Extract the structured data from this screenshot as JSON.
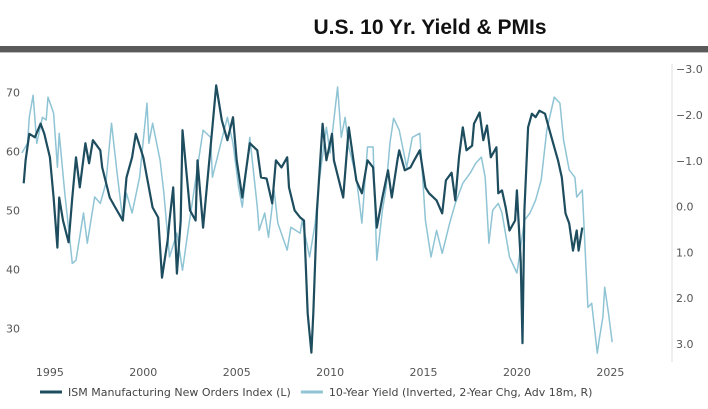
{
  "chart_data": {
    "type": "line",
    "title": "U.S. 10 Yr. Yield & PMIs",
    "xlim": [
      1993.4,
      2028.3
    ],
    "x_ticks": [
      "1995",
      "2000",
      "2005",
      "2010",
      "2015",
      "2020",
      "2025"
    ],
    "y_left": {
      "lim": [
        25.5,
        75.5
      ],
      "ticks": [
        "70",
        "60",
        "50",
        "40",
        "30"
      ]
    },
    "y_right": {
      "lim": [
        -3.2,
        3.24
      ],
      "inverted": true,
      "ticks": [
        "-3.0",
        "-2.0",
        "-1.0",
        "0.0",
        "1.0",
        "2.0",
        "3.0"
      ]
    },
    "grid": false,
    "legend_placement": "bottom",
    "series": [
      {
        "name": "ISM Manufacturing New Orders Index (L)",
        "axis": "left",
        "color": "#1d4d5e",
        "points": [
          [
            1993.6,
            54.6
          ],
          [
            1993.7,
            58.5
          ],
          [
            1993.9,
            63
          ],
          [
            1994.2,
            62.4
          ],
          [
            1994.5,
            64.7
          ],
          [
            1994.7,
            63
          ],
          [
            1995.0,
            59
          ],
          [
            1995.2,
            52.2
          ],
          [
            1995.4,
            43.7
          ],
          [
            1995.5,
            52.2
          ],
          [
            1995.7,
            48.3
          ],
          [
            1996.0,
            44.6
          ],
          [
            1996.2,
            52.2
          ],
          [
            1996.4,
            59
          ],
          [
            1996.6,
            53.9
          ],
          [
            1996.9,
            61.4
          ],
          [
            1997.1,
            58
          ],
          [
            1997.3,
            61.9
          ],
          [
            1997.7,
            60.2
          ],
          [
            1997.8,
            57.3
          ],
          [
            1998.2,
            52.2
          ],
          [
            1998.5,
            50.5
          ],
          [
            1998.9,
            48.3
          ],
          [
            1999.1,
            55.6
          ],
          [
            1999.4,
            59
          ],
          [
            1999.6,
            63
          ],
          [
            2000.0,
            59
          ],
          [
            2000.2,
            55.6
          ],
          [
            2000.5,
            50.5
          ],
          [
            2000.8,
            48.8
          ],
          [
            2001.0,
            38.6
          ],
          [
            2001.3,
            44.9
          ],
          [
            2001.4,
            48.3
          ],
          [
            2001.6,
            53.9
          ],
          [
            2001.8,
            39.3
          ],
          [
            2002.0,
            48.3
          ],
          [
            2002.1,
            63.6
          ],
          [
            2002.5,
            50
          ],
          [
            2002.8,
            48.3
          ],
          [
            2002.9,
            58.5
          ],
          [
            2003.2,
            47.1
          ],
          [
            2003.4,
            53.9
          ],
          [
            2003.7,
            64.1
          ],
          [
            2003.9,
            71.2
          ],
          [
            2004.2,
            65.3
          ],
          [
            2004.5,
            61.9
          ],
          [
            2004.8,
            65.8
          ],
          [
            2005.0,
            58.5
          ],
          [
            2005.3,
            52.2
          ],
          [
            2005.7,
            61.4
          ],
          [
            2006.1,
            60.2
          ],
          [
            2006.3,
            55.6
          ],
          [
            2006.6,
            55.4
          ],
          [
            2006.9,
            51.2
          ],
          [
            2007.1,
            58.5
          ],
          [
            2007.4,
            57.3
          ],
          [
            2007.7,
            59
          ],
          [
            2007.8,
            53.9
          ],
          [
            2008.1,
            50
          ],
          [
            2008.4,
            48.8
          ],
          [
            2008.6,
            48.3
          ],
          [
            2008.8,
            32.5
          ],
          [
            2009.0,
            25.9
          ],
          [
            2009.1,
            32.5
          ],
          [
            2009.3,
            50
          ],
          [
            2009.6,
            64.7
          ],
          [
            2009.8,
            58.5
          ],
          [
            2010.1,
            63
          ],
          [
            2010.2,
            58.5
          ],
          [
            2010.7,
            52.2
          ],
          [
            2011.0,
            64.1
          ],
          [
            2011.4,
            55.1
          ],
          [
            2011.7,
            52.9
          ],
          [
            2012.0,
            58.5
          ],
          [
            2012.3,
            57.3
          ],
          [
            2012.5,
            47.1
          ],
          [
            2012.8,
            52.2
          ],
          [
            2013.1,
            56.8
          ],
          [
            2013.3,
            52.2
          ],
          [
            2013.6,
            58.5
          ],
          [
            2013.7,
            60.2
          ],
          [
            2014.0,
            56.8
          ],
          [
            2014.3,
            57.3
          ],
          [
            2014.5,
            58.5
          ],
          [
            2014.8,
            60.2
          ],
          [
            2015.1,
            53.9
          ],
          [
            2015.3,
            52.9
          ],
          [
            2015.7,
            51.7
          ],
          [
            2016.0,
            49.5
          ],
          [
            2016.2,
            55.1
          ],
          [
            2016.5,
            56.4
          ],
          [
            2016.7,
            51.7
          ],
          [
            2016.9,
            59
          ],
          [
            2017.1,
            64.1
          ],
          [
            2017.3,
            60.2
          ],
          [
            2017.6,
            61
          ],
          [
            2017.7,
            64.7
          ],
          [
            2018.0,
            66.6
          ],
          [
            2018.2,
            61.9
          ],
          [
            2018.4,
            64.4
          ],
          [
            2018.6,
            59
          ],
          [
            2018.9,
            60.7
          ],
          [
            2019.0,
            52.9
          ],
          [
            2019.2,
            53.4
          ],
          [
            2019.4,
            50.5
          ],
          [
            2019.6,
            46.6
          ],
          [
            2019.9,
            48.3
          ],
          [
            2020.0,
            53.4
          ],
          [
            2020.2,
            41.5
          ],
          [
            2020.3,
            27.5
          ],
          [
            2020.4,
            50
          ],
          [
            2020.6,
            64.1
          ],
          [
            2020.8,
            66.4
          ],
          [
            2021.0,
            65.8
          ],
          [
            2021.2,
            66.9
          ],
          [
            2021.5,
            66.4
          ],
          [
            2021.7,
            64.1
          ],
          [
            2022.0,
            60.7
          ],
          [
            2022.2,
            58.5
          ],
          [
            2022.4,
            55.6
          ],
          [
            2022.6,
            49.5
          ],
          [
            2022.8,
            47.8
          ],
          [
            2023.0,
            43.2
          ],
          [
            2023.2,
            46.6
          ],
          [
            2023.3,
            43.2
          ],
          [
            2023.5,
            47.1
          ]
        ]
      },
      {
        "name": "10-Year Yield (Inverted, 2-Year Chg, Adv 18m, R)",
        "axis": "right",
        "color": "#8fc4d5",
        "points": [
          [
            1993.5,
            -1.17
          ],
          [
            1993.8,
            -1.38
          ],
          [
            1993.9,
            -1.95
          ],
          [
            1994.1,
            -2.43
          ],
          [
            1994.3,
            -1.38
          ],
          [
            1994.6,
            -1.95
          ],
          [
            1994.8,
            -1.89
          ],
          [
            1994.9,
            -2.39
          ],
          [
            1995.2,
            -2.04
          ],
          [
            1995.4,
            -0.86
          ],
          [
            1995.5,
            -1.6
          ],
          [
            1995.8,
            -0.29
          ],
          [
            1996.2,
            1.24
          ],
          [
            1996.4,
            1.17
          ],
          [
            1996.8,
            0.14
          ],
          [
            1997.0,
            0.8
          ],
          [
            1997.4,
            -0.21
          ],
          [
            1997.7,
            -0.07
          ],
          [
            1998.0,
            -0.51
          ],
          [
            1998.3,
            -1.82
          ],
          [
            1998.6,
            -0.73
          ],
          [
            1998.9,
            0.3
          ],
          [
            1999.1,
            -0.29
          ],
          [
            1999.4,
            0.14
          ],
          [
            1999.8,
            -0.64
          ],
          [
            2000.2,
            -2.26
          ],
          [
            2000.3,
            -1.38
          ],
          [
            2000.5,
            -1.82
          ],
          [
            2000.9,
            -1.01
          ],
          [
            2001.1,
            -0.29
          ],
          [
            2001.4,
            1.1
          ],
          [
            2001.8,
            0.58
          ],
          [
            2002.1,
            1.39
          ],
          [
            2002.4,
            0.52
          ],
          [
            2002.9,
            -0.86
          ],
          [
            2003.2,
            -1.67
          ],
          [
            2003.6,
            -1.51
          ],
          [
            2003.7,
            -0.64
          ],
          [
            2004.1,
            -1.3
          ],
          [
            2004.5,
            -1.95
          ],
          [
            2004.8,
            -1.38
          ],
          [
            2005.1,
            -0.42
          ],
          [
            2005.3,
            0.01
          ],
          [
            2005.7,
            -1.51
          ],
          [
            2006.1,
            0.01
          ],
          [
            2006.2,
            0.52
          ],
          [
            2006.5,
            0.14
          ],
          [
            2006.7,
            0.67
          ],
          [
            2007.0,
            -0.36
          ],
          [
            2007.2,
            0.36
          ],
          [
            2007.7,
            0.95
          ],
          [
            2007.9,
            0.45
          ],
          [
            2008.4,
            0.58
          ],
          [
            2008.5,
            0.3
          ],
          [
            2008.9,
            1.1
          ],
          [
            2009.2,
            0.36
          ],
          [
            2009.4,
            -0.51
          ],
          [
            2009.8,
            -1.73
          ],
          [
            2010.0,
            -1.17
          ],
          [
            2010.4,
            -2.61
          ],
          [
            2010.6,
            -1.51
          ],
          [
            2010.8,
            -1.95
          ],
          [
            2011.0,
            -1.3
          ],
          [
            2011.4,
            -0.64
          ],
          [
            2011.7,
            0.36
          ],
          [
            2012.0,
            -1.3
          ],
          [
            2012.3,
            -1.3
          ],
          [
            2012.5,
            1.17
          ],
          [
            2012.8,
            0.08
          ],
          [
            2013.0,
            -0.42
          ],
          [
            2013.2,
            -1.38
          ],
          [
            2013.4,
            -1.93
          ],
          [
            2013.7,
            -1.67
          ],
          [
            2014.1,
            -0.86
          ],
          [
            2014.4,
            -1.51
          ],
          [
            2014.8,
            -1.6
          ],
          [
            2015.1,
            0.3
          ],
          [
            2015.4,
            1.1
          ],
          [
            2015.7,
            0.52
          ],
          [
            2016.0,
            1.02
          ],
          [
            2016.4,
            0.36
          ],
          [
            2016.7,
            -0.07
          ],
          [
            2017.1,
            -0.51
          ],
          [
            2017.5,
            -0.73
          ],
          [
            2017.8,
            -0.95
          ],
          [
            2018.1,
            -1.08
          ],
          [
            2018.3,
            -0.64
          ],
          [
            2018.5,
            0.8
          ],
          [
            2018.7,
            0.08
          ],
          [
            2019.0,
            -0.07
          ],
          [
            2019.2,
            0.14
          ],
          [
            2019.6,
            1.1
          ],
          [
            2020.0,
            1.45
          ],
          [
            2020.1,
            1.17
          ],
          [
            2020.4,
            0.3
          ],
          [
            2020.7,
            0.14
          ],
          [
            2021.0,
            -0.14
          ],
          [
            2021.3,
            -0.58
          ],
          [
            2021.6,
            -1.67
          ],
          [
            2021.9,
            -2.21
          ],
          [
            2022.0,
            -2.39
          ],
          [
            2022.3,
            -2.26
          ],
          [
            2022.5,
            -1.45
          ],
          [
            2022.8,
            -0.8
          ],
          [
            2023.1,
            -0.64
          ],
          [
            2023.2,
            -0.21
          ],
          [
            2023.5,
            -0.36
          ],
          [
            2023.8,
            2.2
          ],
          [
            2024.0,
            2.11
          ],
          [
            2024.3,
            3.2
          ],
          [
            2024.4,
            2.92
          ],
          [
            2024.6,
            2.41
          ],
          [
            2024.7,
            1.76
          ],
          [
            2024.9,
            2.33
          ],
          [
            2025.1,
            2.96
          ]
        ]
      }
    ]
  }
}
